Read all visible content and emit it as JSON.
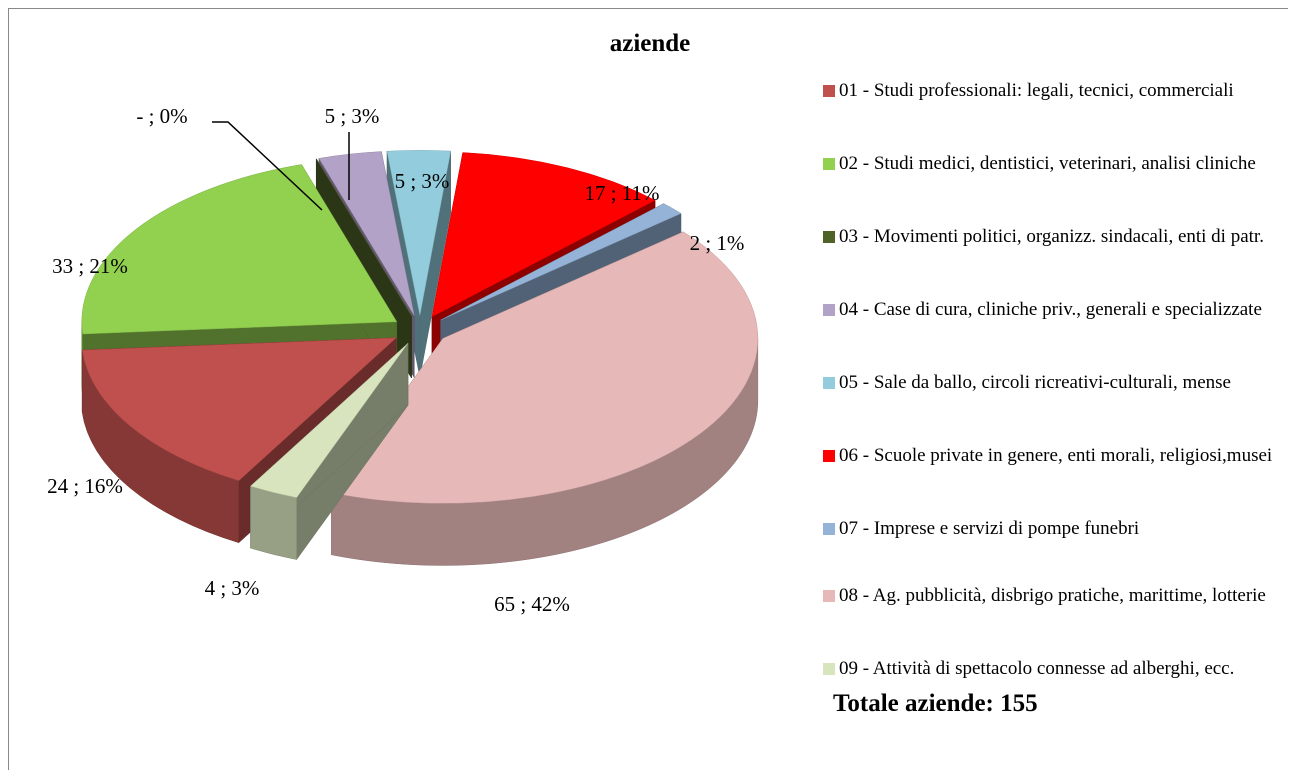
{
  "chart_data": {
    "type": "pie",
    "title": "aziende",
    "categories": [
      "01 - Studi professionali: legali, tecnici, commerciali",
      "02 - Studi medici, dentistici, veterinari, analisi cliniche",
      "03 - Movimenti politici, organizz. sindacali, enti di patr.",
      "04 - Case di cura, cliniche priv., generali e specializzate",
      "05 - Sale da ballo, circoli ricreativi-culturali, mense",
      "06 - Scuole private in genere, enti morali, religiosi,musei",
      "07 - Imprese e servizi di pompe funebri",
      "08 - Ag. pubblicità, disbrigo pratiche, marittime, lotterie",
      "09 - Attività di spettacolo connesse ad alberghi, ecc."
    ],
    "values": [
      24,
      33,
      0,
      5,
      5,
      17,
      2,
      65,
      4
    ],
    "value_labels": [
      "24 ; 16%",
      "33 ; 21%",
      "-   ; 0%",
      "5 ; 3%",
      "5 ; 3%",
      "17 ; 11%",
      "2 ; 1%",
      "65 ; 42%",
      "4 ; 3%"
    ],
    "colors": [
      "#c0504d",
      "#92d050",
      "#4f6228",
      "#b3a2c7",
      "#93cddd",
      "#ff0000",
      "#95b3d7",
      "#e6b9b8",
      "#d7e4bd"
    ],
    "legend": "right",
    "annotation": "Totale aziende: 155"
  }
}
